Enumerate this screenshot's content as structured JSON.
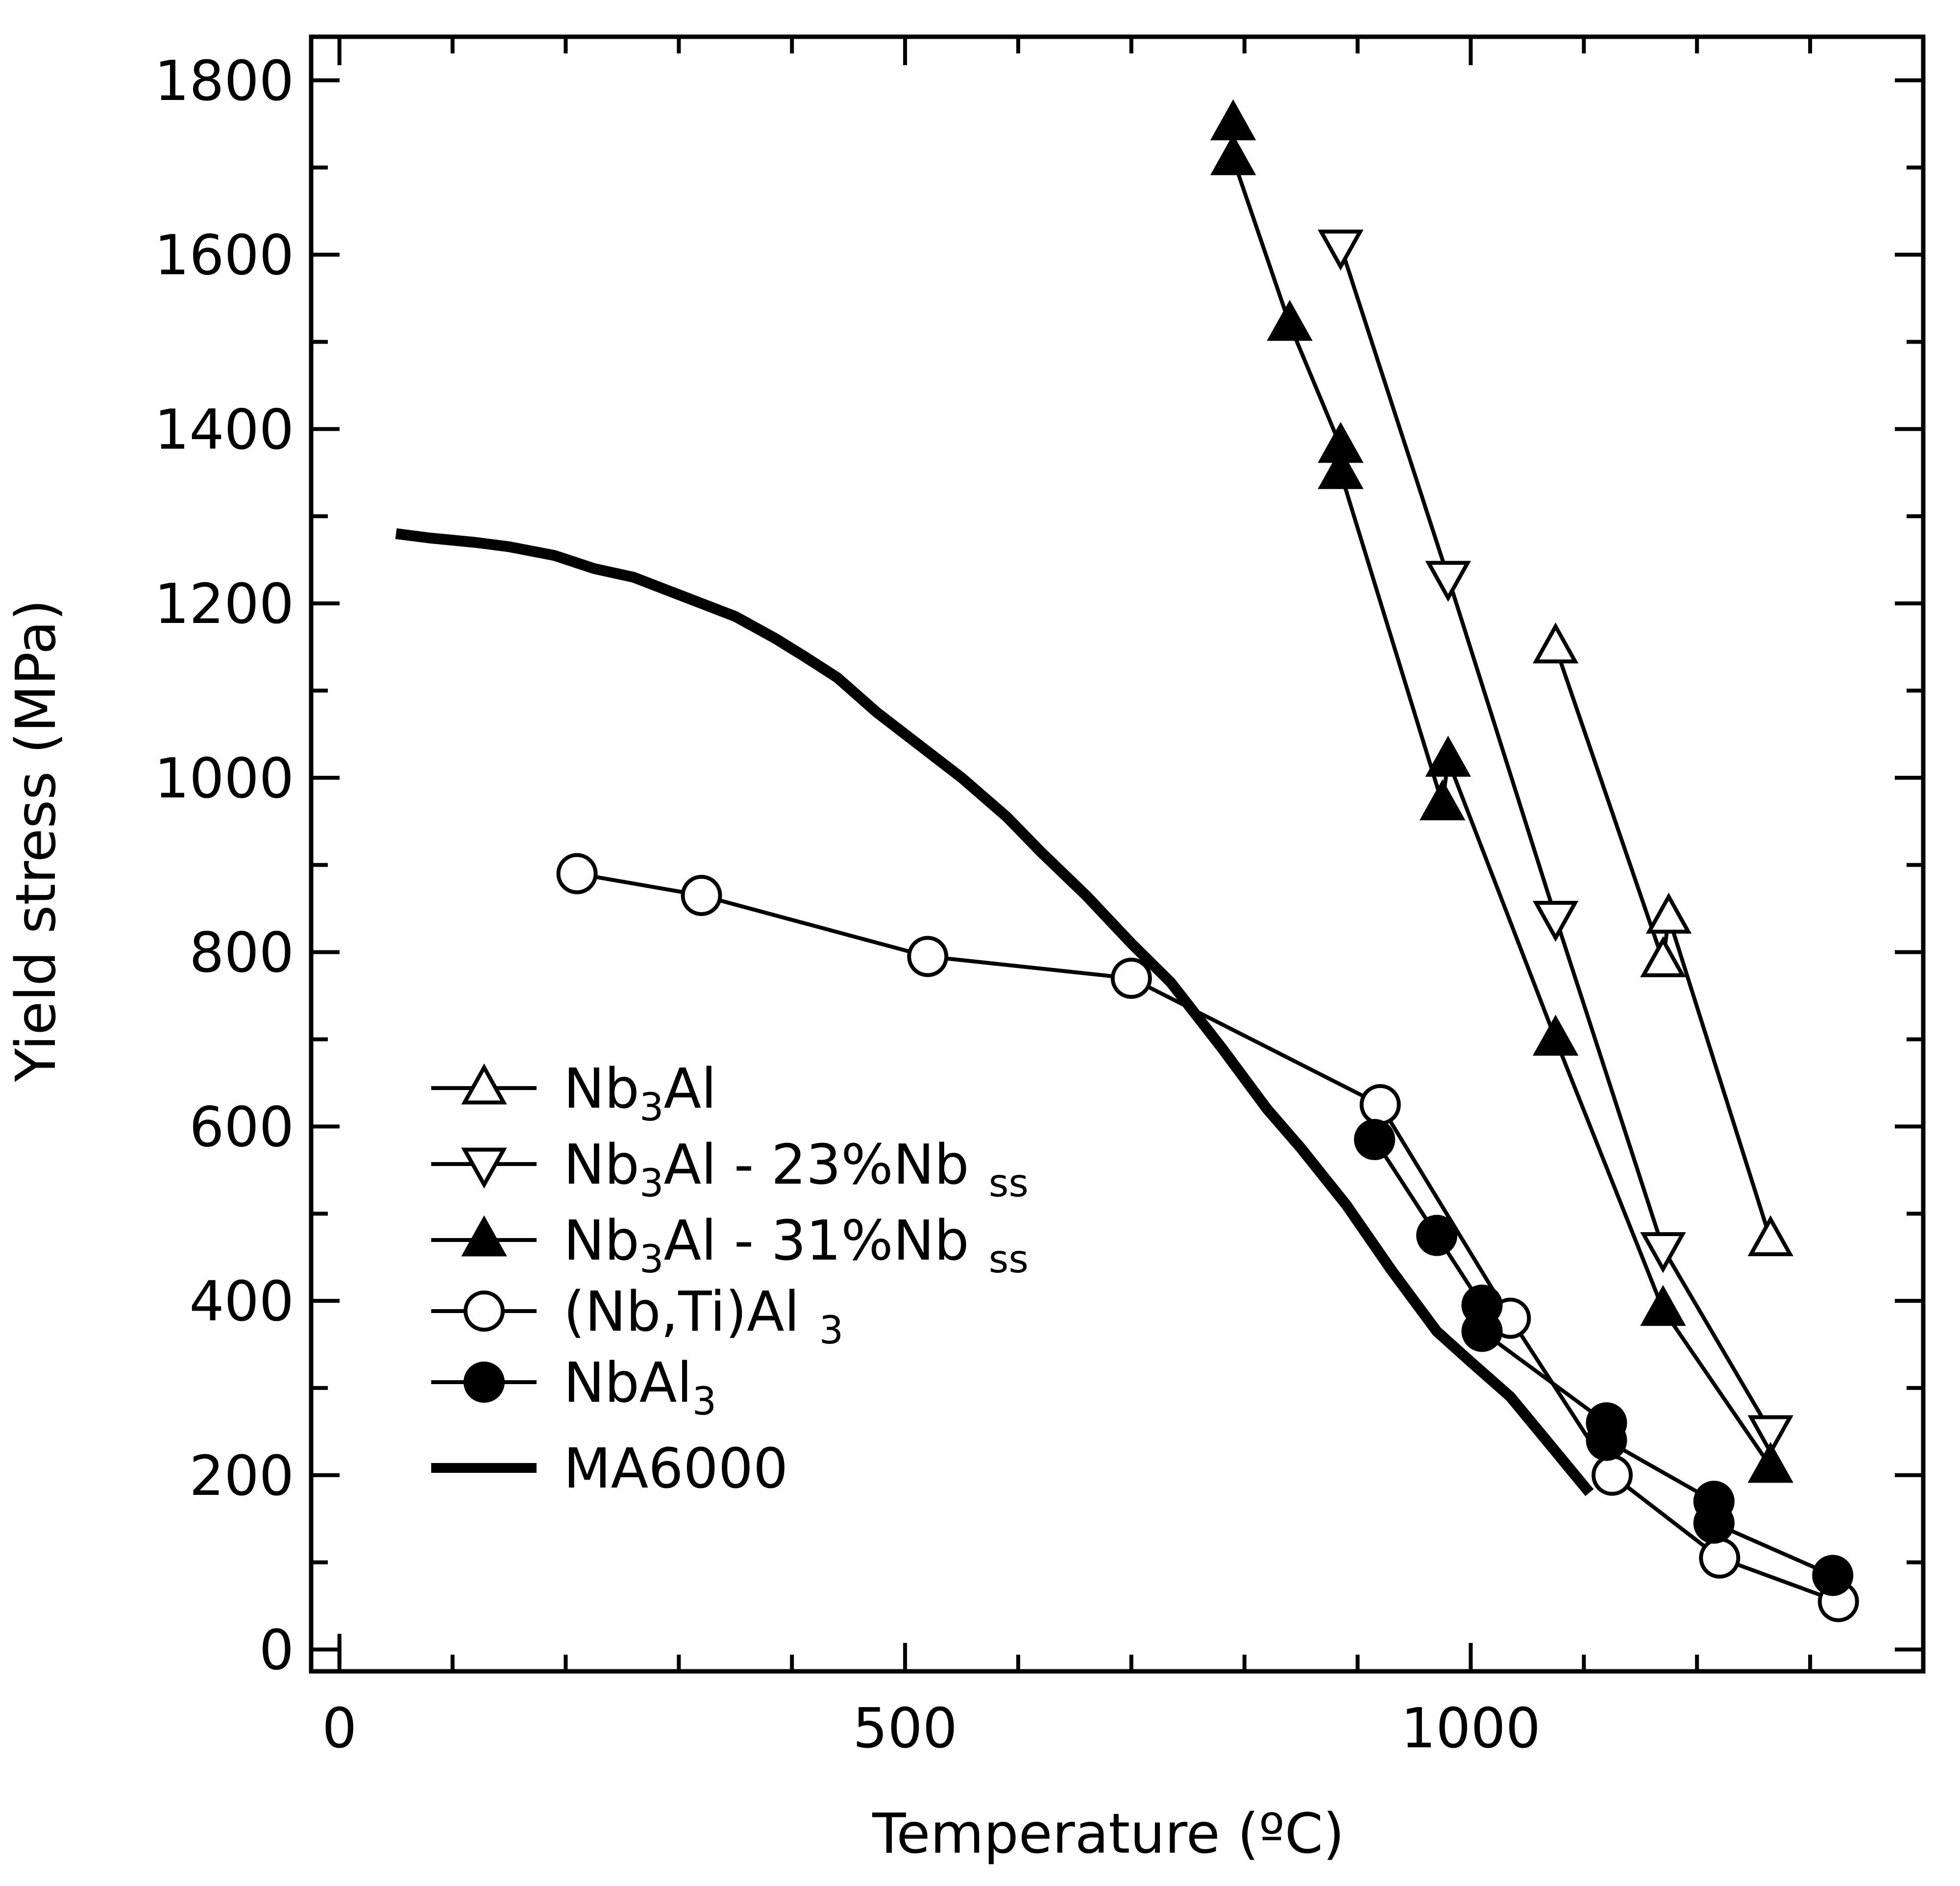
{
  "chart_data": {
    "type": "line",
    "title": "",
    "xlabel": "Temperature (ºC)",
    "ylabel": "Yield stress (MPa)",
    "xlim": [
      -25,
      1400
    ],
    "ylim": [
      -25,
      1850
    ],
    "xticks": [
      0,
      500,
      1000
    ],
    "yticks": [
      0,
      200,
      400,
      600,
      800,
      1000,
      1200,
      1400,
      1600,
      1800
    ],
    "grid": false,
    "legend_position": "left, lower-middle",
    "series": [
      {
        "name": "Nb3Al",
        "marker": "triangle-up-open",
        "x": [
          1075,
          1170,
          1175,
          1265
        ],
        "y": [
          1150,
          790,
          840,
          470
        ]
      },
      {
        "name": "Nb3Al - 23%Nb ss",
        "marker": "triangle-down-open",
        "x": [
          885,
          980,
          1075,
          1170,
          1265
        ],
        "y": [
          1610,
          1230,
          840,
          460,
          250
        ]
      },
      {
        "name": "Nb3Al - 31%Nb ss",
        "marker": "triangle-up-filled",
        "x": [
          790,
          790,
          840,
          885,
          885,
          975,
          980,
          1075,
          1170,
          1265
        ],
        "y": [
          1750,
          1710,
          1520,
          1380,
          1350,
          970,
          1020,
          700,
          390,
          210
        ]
      },
      {
        "name": "(Nb,Ti)Al 3",
        "marker": "circle-open",
        "x": [
          210,
          320,
          520,
          700,
          920,
          1035,
          1125,
          1220,
          1325
        ],
        "y": [
          890,
          865,
          795,
          770,
          625,
          380,
          200,
          105,
          55
        ]
      },
      {
        "name": "NbAl3",
        "marker": "circle-filled",
        "x": [
          915,
          970,
          1010,
          1010,
          1120,
          1120,
          1215,
          1215,
          1320
        ],
        "y": [
          585,
          475,
          395,
          365,
          260,
          240,
          170,
          145,
          85
        ]
      },
      {
        "name": "MA6000",
        "marker": "none",
        "x": [
          50,
          80,
          120,
          150,
          190,
          225,
          260,
          290,
          320,
          350,
          385,
          410,
          440,
          475,
          510,
          550,
          590,
          620,
          660,
          700,
          735,
          780,
          820,
          850,
          890,
          930,
          970,
          1000,
          1035,
          1070,
          1105
        ],
        "y": [
          1280,
          1275,
          1270,
          1265,
          1255,
          1240,
          1230,
          1215,
          1200,
          1185,
          1160,
          1140,
          1115,
          1075,
          1040,
          1000,
          955,
          915,
          865,
          810,
          765,
          690,
          620,
          575,
          510,
          435,
          365,
          330,
          290,
          235,
          180
        ]
      }
    ],
    "legend": [
      {
        "label": "Nb",
        "sub": "3",
        "suffix": "Al"
      },
      {
        "label": "Nb",
        "sub": "3",
        "suffix": "Al - 23%Nb",
        "sub2": "ss"
      },
      {
        "label": "Nb",
        "sub": "3",
        "suffix": "Al - 31%Nb",
        "sub2": "ss"
      },
      {
        "label": "(Nb,Ti)Al",
        "sub": "",
        "suffix": "",
        "sub2": "3"
      },
      {
        "label": "NbAl",
        "sub": "3",
        "suffix": ""
      },
      {
        "label": "MA6000",
        "sub": "",
        "suffix": ""
      }
    ]
  }
}
